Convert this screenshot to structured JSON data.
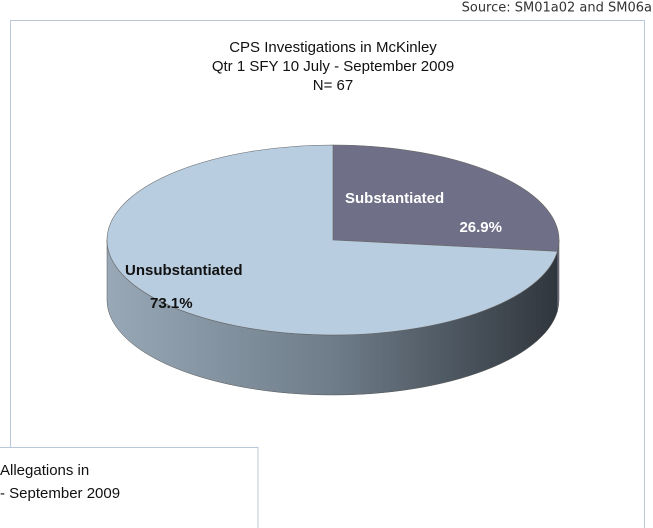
{
  "source": "Source: SM01a02 and SM06a",
  "chart_data": {
    "type": "pie",
    "title": "CPS Investigations in McKinley",
    "subtitle": [
      "Qtr 1 SFY 10   July - September 2009",
      "N= 67"
    ],
    "categories": [
      "Substantiated",
      "Unsubstantiated"
    ],
    "values": [
      26.9,
      73.1
    ],
    "value_labels": [
      "26.9%",
      "73.1%"
    ],
    "colors": [
      "#6f6f87",
      "#b9cde0"
    ],
    "start_angle": 0,
    "three_d": true
  },
  "partial_chart": {
    "title_lines": [
      "Allegations in",
      "- September 2009"
    ]
  }
}
